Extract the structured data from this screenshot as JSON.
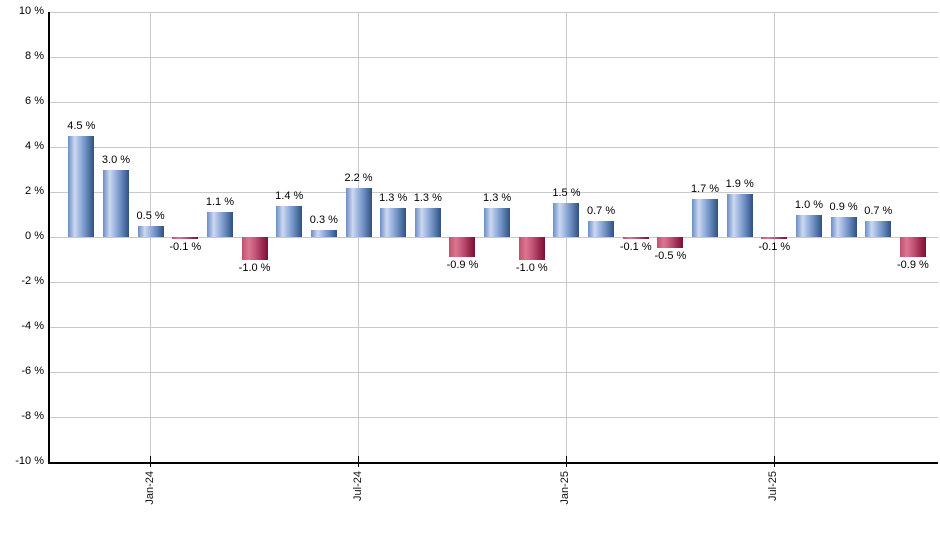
{
  "chart_data": {
    "type": "bar",
    "title": "",
    "xlabel": "",
    "ylabel": "",
    "ylim": [
      -10,
      10
    ],
    "grid": true,
    "legend_position": "none",
    "bar_count": 25,
    "values": [
      4.5,
      3.0,
      0.5,
      -0.1,
      1.1,
      -1.0,
      1.4,
      0.3,
      2.2,
      1.3,
      1.3,
      -0.9,
      1.3,
      -1.0,
      1.5,
      0.7,
      -0.1,
      -0.5,
      1.7,
      1.9,
      -0.1,
      1.0,
      0.9,
      0.7,
      -0.9
    ],
    "value_labels": [
      "4.5 %",
      "3.0 %",
      "0.5 %",
      "-0.1 %",
      "1.1 %",
      "-1.0 %",
      "1.4 %",
      "0.3 %",
      "2.2 %",
      "1.3 %",
      "1.3 %",
      "-0.9 %",
      "1.3 %",
      "-1.0 %",
      "1.5 %",
      "0.7 %",
      "-0.1 %",
      "-0.5 %",
      "1.7 %",
      "1.9 %",
      "-0.1 %",
      "1.0 %",
      "0.9 %",
      "0.7 %",
      "-0.9 %"
    ],
    "y_tick_values": [
      10,
      8,
      6,
      4,
      2,
      0,
      -2,
      -4,
      -6,
      -8,
      -10
    ],
    "y_tick_labels": [
      "10 %",
      "8 %",
      "6 %",
      "4 %",
      "2 %",
      "0 %",
      "-2 %",
      "-4 %",
      "-6 %",
      "-8 %",
      "-10 %"
    ],
    "x_ticks": [
      {
        "index": 2,
        "label": "Jan-24"
      },
      {
        "index": 8,
        "label": "Jul-24"
      },
      {
        "index": 14,
        "label": "Jan-25"
      },
      {
        "index": 20,
        "label": "Jul-25"
      }
    ],
    "colors": {
      "positive_bar_gradient": [
        "#6c8cc4",
        "#ccd9f0",
        "#94aedb",
        "#5f7fb4",
        "#305082"
      ],
      "negative_bar_gradient": [
        "#c0506e",
        "#dd7691",
        "#c05577",
        "#9c2a50",
        "#7c1034"
      ],
      "gridline": "#c9c9c9",
      "axis": "#000000",
      "text": "#000000",
      "background": "#ffffff"
    }
  }
}
